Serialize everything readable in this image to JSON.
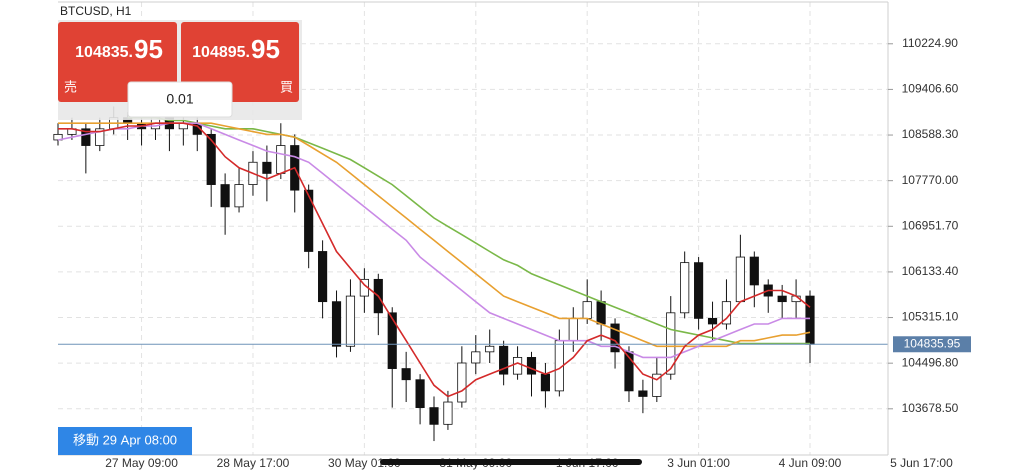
{
  "chart_data": {
    "type": "candlestick",
    "title": "BTCUSD, H1",
    "open": [
      108500,
      108600,
      108700,
      108400,
      108700,
      108900,
      108800,
      108700,
      108900,
      108700,
      108800,
      108600,
      107700,
      107300,
      107700,
      108100,
      107900,
      108400,
      107600,
      106500,
      105600,
      104800,
      105700,
      106000,
      105400,
      104400,
      104200,
      103700,
      103400,
      103800,
      104500,
      104700,
      104800,
      104300,
      104600,
      104300,
      104000,
      104900,
      105300,
      105600,
      105200,
      104700,
      104000,
      103900,
      104300,
      105400,
      106300,
      105300,
      105200,
      105600,
      106400,
      105900,
      105700,
      105600,
      105700
    ],
    "high": [
      108800,
      108900,
      108800,
      108900,
      109100,
      109000,
      108900,
      109100,
      109000,
      109000,
      108900,
      108700,
      107900,
      108000,
      108300,
      108400,
      108800,
      108600,
      107700,
      106700,
      105800,
      106000,
      106200,
      106100,
      105500,
      104700,
      104300,
      103900,
      104000,
      104800,
      105000,
      105100,
      104900,
      104800,
      104700,
      104500,
      105100,
      105500,
      106000,
      105800,
      105300,
      104800,
      104200,
      104600,
      105700,
      106500,
      106400,
      105600,
      106000,
      106800,
      106500,
      106000,
      105900,
      106000,
      105800
    ],
    "low": [
      108400,
      108500,
      107900,
      108300,
      108600,
      108500,
      108400,
      108500,
      108300,
      108400,
      108300,
      107300,
      106800,
      107200,
      107500,
      107400,
      107800,
      107200,
      106200,
      105300,
      104600,
      104700,
      105400,
      105000,
      103700,
      103800,
      103400,
      103100,
      103300,
      103700,
      104300,
      104500,
      104100,
      104200,
      103900,
      103700,
      103900,
      104700,
      105200,
      104900,
      104400,
      103800,
      103600,
      103800,
      104200,
      105300,
      105100,
      104900,
      105100,
      105600,
      105500,
      105400,
      105300,
      105300,
      104500
    ],
    "close": [
      108600,
      108700,
      108400,
      108700,
      108900,
      108800,
      108700,
      108900,
      108700,
      108800,
      108600,
      107700,
      107300,
      107700,
      108100,
      107900,
      108400,
      107600,
      106500,
      105600,
      104800,
      105700,
      106000,
      105400,
      104400,
      104200,
      103700,
      103400,
      103800,
      104500,
      104700,
      104800,
      104300,
      104600,
      104300,
      104000,
      104900,
      105300,
      105600,
      105200,
      104700,
      104000,
      103900,
      104300,
      105400,
      106300,
      105300,
      105200,
      105600,
      106400,
      105900,
      105700,
      105600,
      105700,
      104835.95
    ],
    "up_color": "#ffffff",
    "down_color": "#111111",
    "series": [
      {
        "color": "#7ab848",
        "values": [
          null,
          null,
          null,
          null,
          null,
          108900,
          108900,
          108900,
          108850,
          108850,
          108800,
          108750,
          108700,
          108700,
          108700,
          108650,
          108600,
          108550,
          108450,
          108350,
          108250,
          108150,
          108000,
          107850,
          107700,
          107500,
          107300,
          107100,
          106950,
          106800,
          106650,
          106500,
          106350,
          106250,
          106100,
          106000,
          105900,
          105800,
          105700,
          105600,
          105500,
          105400,
          105300,
          105200,
          105100,
          105050,
          105000,
          104950,
          104900,
          104850,
          104850,
          104850,
          104850,
          104850,
          104850
        ]
      },
      {
        "color": "#e8a030",
        "values": [
          108800,
          108800,
          108800,
          108800,
          108800,
          108800,
          108800,
          108800,
          108800,
          108800,
          108800,
          108800,
          108750,
          108700,
          108650,
          108600,
          108600,
          108550,
          108400,
          108250,
          108100,
          107900,
          107700,
          107500,
          107300,
          107100,
          106900,
          106700,
          106500,
          106300,
          106100,
          105900,
          105700,
          105600,
          105500,
          105400,
          105300,
          105300,
          105300,
          105200,
          105100,
          105000,
          104900,
          104800,
          104800,
          104800,
          104800,
          104800,
          104800,
          104900,
          104900,
          104950,
          105000,
          105000,
          105050
        ]
      },
      {
        "color": "#c98ae6",
        "values": [
          108500,
          108550,
          108600,
          108650,
          108700,
          108700,
          108750,
          108750,
          108800,
          108800,
          108800,
          108700,
          108600,
          108500,
          108400,
          108300,
          108250,
          108200,
          108100,
          107900,
          107700,
          107500,
          107300,
          107100,
          106900,
          106700,
          106400,
          106200,
          106000,
          105800,
          105600,
          105400,
          105300,
          105200,
          105100,
          105000,
          104900,
          104900,
          104900,
          104800,
          104800,
          104700,
          104600,
          104600,
          104600,
          104700,
          104800,
          104900,
          105000,
          105100,
          105200,
          105200,
          105300,
          105300,
          105300
        ]
      },
      {
        "color": "#d42a2a",
        "values": [
          108700,
          108700,
          108650,
          108650,
          108700,
          108750,
          108750,
          108800,
          108800,
          108800,
          108750,
          108500,
          108200,
          108000,
          107900,
          107800,
          107900,
          108000,
          107500,
          107000,
          106500,
          106200,
          105900,
          105700,
          105300,
          104900,
          104500,
          104100,
          103900,
          104000,
          104200,
          104300,
          104400,
          104500,
          104400,
          104300,
          104400,
          104600,
          104900,
          105000,
          104900,
          104600,
          104300,
          104200,
          104400,
          104800,
          105000,
          105100,
          105300,
          105600,
          105700,
          105800,
          105800,
          105700,
          105500
        ]
      }
    ],
    "ma_colors_override": null,
    "xlim": [
      0,
      59.6
    ],
    "xticks": [
      {
        "value": 6,
        "label": "27 May 09:00"
      },
      {
        "value": 14,
        "label": "28 May 17:00"
      },
      {
        "value": 22,
        "label": "30 May 01:00"
      },
      {
        "value": 30,
        "label": "31 May 09:00"
      },
      {
        "value": 38,
        "label": "1 Jun 17:00"
      },
      {
        "value": 46,
        "label": "3 Jun 01:00"
      },
      {
        "value": 54,
        "label": "4 Jun 09:00"
      },
      {
        "value": 62,
        "label": "5 Jun 17:00"
      }
    ],
    "ylim": [
      102850,
      111010
    ],
    "yticks": [
      {
        "value": 110224.9,
        "label": "110224.90"
      },
      {
        "value": 109406.6,
        "label": "109406.60"
      },
      {
        "value": 108588.3,
        "label": "108588.30"
      },
      {
        "value": 107770,
        "label": "107770.00"
      },
      {
        "value": 106951.7,
        "label": "106951.70"
      },
      {
        "value": 106133.4,
        "label": "106133.40"
      },
      {
        "value": 105315.1,
        "label": "105315.10"
      },
      {
        "value": 104496.8,
        "label": "104496.80"
      },
      {
        "value": 103678.5,
        "label": "103678.50"
      }
    ],
    "current_price": 104835.95,
    "grid": true
  },
  "trade_panel": {
    "sell": {
      "price_main": "104835.",
      "price_pips": "95",
      "label": "売"
    },
    "buy": {
      "price_main": "104895.",
      "price_pips": "95",
      "label": "買"
    },
    "volume": "0.01"
  },
  "scroll_button": "移動 29 Apr 08:00"
}
